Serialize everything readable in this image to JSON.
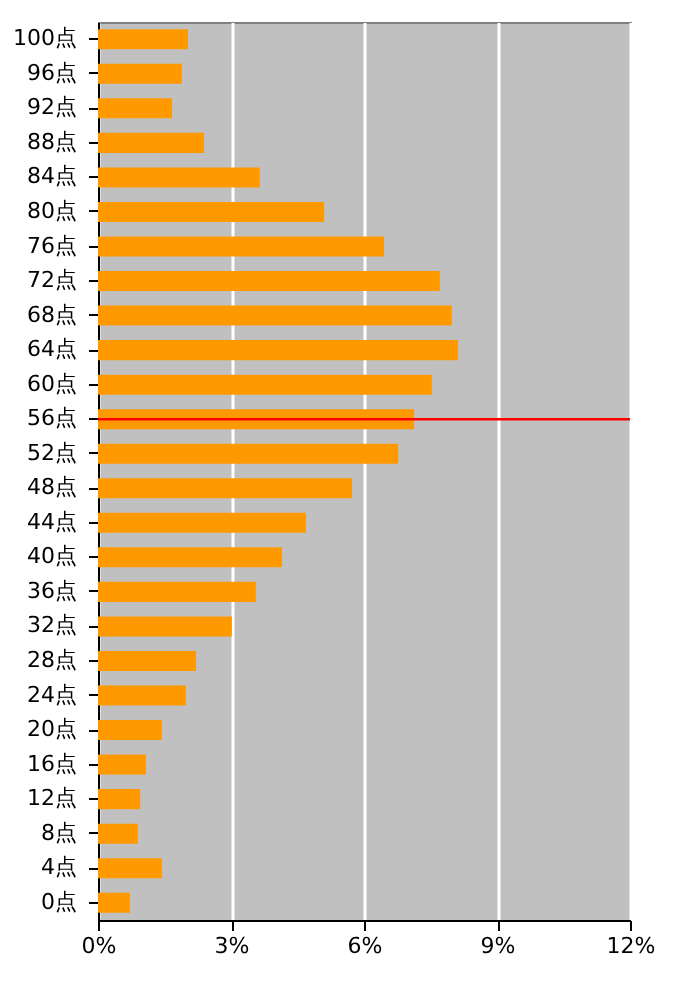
{
  "chart_data": {
    "type": "bar",
    "orientation": "horizontal",
    "categories": [
      "100点",
      "96点",
      "92点",
      "88点",
      "84点",
      "80点",
      "76点",
      "72点",
      "68点",
      "64点",
      "60点",
      "56点",
      "52点",
      "48点",
      "44点",
      "40点",
      "36点",
      "32点",
      "28点",
      "24点",
      "20点",
      "16点",
      "12点",
      "8点",
      "4点",
      "0点"
    ],
    "values": [
      2.03,
      1.89,
      1.67,
      2.39,
      3.65,
      5.1,
      6.45,
      7.71,
      7.98,
      8.12,
      7.53,
      7.13,
      6.77,
      5.73,
      4.69,
      4.15,
      3.56,
      3.02,
      2.21,
      1.98,
      1.44,
      1.08,
      0.95,
      0.9,
      1.44,
      0.72
    ],
    "color": "#ff9900",
    "xlim": [
      0,
      12
    ],
    "xticks": [
      {
        "value": 0,
        "label": "0%"
      },
      {
        "value": 3,
        "label": "3%"
      },
      {
        "value": 6,
        "label": "6%"
      },
      {
        "value": 9,
        "label": "9%"
      },
      {
        "value": 12,
        "label": "12%"
      }
    ],
    "grid": "x",
    "ref_lines": [
      {
        "axis": "y",
        "value": "56点",
        "color": "#ff0000"
      }
    ]
  }
}
